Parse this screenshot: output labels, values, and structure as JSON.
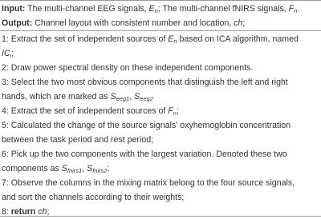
{
  "header": {
    "input": [
      "Input:",
      " The multi-channel EEG signals, ",
      "E",
      "n",
      "; The multi-channel fNIRS signals, ",
      "F",
      "n",
      "."
    ],
    "output": [
      "Output:",
      " Channel layout with consistent number and location, ",
      "ch",
      ";"
    ]
  },
  "lines": [
    [
      "1: Extract the set of independent sources of ",
      "E",
      "n",
      " based on ICA algorithm, named"
    ],
    [
      "IC",
      "i",
      ";"
    ],
    [
      "2: Draw power spectral density on these independent components."
    ],
    [
      "3: Select the two most obvious components that distinguish the left and right"
    ],
    [
      "hands, which are marked as ",
      "S",
      "eeg1",
      ", ",
      "S",
      "eeg2"
    ],
    [
      "4: Extract the set of independent sources of ",
      "F",
      "n",
      ";"
    ],
    [
      "5: Calculated the change of the source signals' oxyhemoglobin concentration"
    ],
    [
      "between the task period and rest period;"
    ],
    [
      "6: Pick up the two components with the largest variation. Denoted these two"
    ],
    [
      "components as ",
      "S",
      "fnirs1",
      ", ",
      "S",
      "fnirs2",
      ";"
    ],
    [
      "7: Observe the columns in the mixing matrix belong to the four source signals,"
    ],
    [
      "and sort the channels according to their weights;"
    ],
    [
      "8: ",
      "return",
      " ",
      "ch",
      ";"
    ]
  ]
}
